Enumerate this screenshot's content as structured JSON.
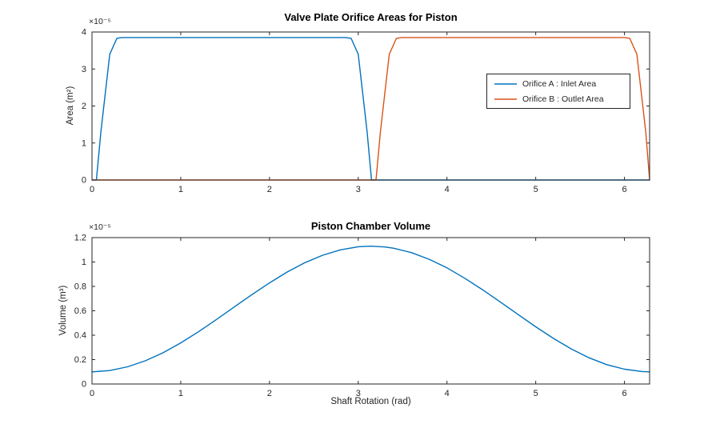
{
  "figure": {
    "background": "#ffffff",
    "axis_color": "#262626",
    "title_color": "#000000"
  },
  "chart_data": [
    {
      "type": "line",
      "title": "Valve Plate Orifice Areas for Piston",
      "xlabel": "",
      "ylabel": "Area  (m²)",
      "y_multiplier": "×10⁻⁵",
      "xlim": [
        0,
        6.2832
      ],
      "ylim": [
        0,
        4
      ],
      "xticks": [
        0,
        1,
        2,
        3,
        4,
        5,
        6
      ],
      "yticks": [
        0,
        1,
        2,
        3,
        4
      ],
      "grid": false,
      "legend_position": "middle-right",
      "series": [
        {
          "name": "Orifice A : Inlet Area",
          "color": "#0072BD",
          "points": [
            [
              0,
              0
            ],
            [
              0.05,
              0
            ],
            [
              0.1,
              1.3
            ],
            [
              0.2,
              3.4
            ],
            [
              0.28,
              3.83
            ],
            [
              0.34,
              3.85
            ],
            [
              2.86,
              3.85
            ],
            [
              2.92,
              3.83
            ],
            [
              3.0,
              3.4
            ],
            [
              3.1,
              1.3
            ],
            [
              3.15,
              0
            ],
            [
              6.2832,
              0
            ]
          ]
        },
        {
          "name": "Orifice B : Outlet Area",
          "color": "#D95319",
          "points": [
            [
              0,
              0
            ],
            [
              3.2,
              0
            ],
            [
              3.25,
              1.3
            ],
            [
              3.35,
              3.4
            ],
            [
              3.43,
              3.83
            ],
            [
              3.49,
              3.85
            ],
            [
              6.0,
              3.85
            ],
            [
              6.06,
              3.83
            ],
            [
              6.14,
              3.4
            ],
            [
              6.24,
              1.3
            ],
            [
              6.2832,
              0
            ]
          ]
        }
      ]
    },
    {
      "type": "line",
      "title": "Piston Chamber Volume",
      "xlabel": "Shaft Rotation (rad)",
      "ylabel": "Volume  (m³)",
      "y_multiplier": "×10⁻⁵",
      "xlim": [
        0,
        6.2832
      ],
      "ylim": [
        0,
        1.2
      ],
      "xticks": [
        0,
        1,
        2,
        3,
        4,
        5,
        6
      ],
      "yticks": [
        0,
        0.2,
        0.4,
        0.6,
        0.8,
        1,
        1.2
      ],
      "grid": false,
      "series": [
        {
          "color": "#0072BD",
          "points": [
            [
              0,
              0.1
            ],
            [
              0.2,
              0.11
            ],
            [
              0.4,
              0.141
            ],
            [
              0.6,
              0.19
            ],
            [
              0.8,
              0.256
            ],
            [
              1.0,
              0.337
            ],
            [
              1.2,
              0.428
            ],
            [
              1.4,
              0.527
            ],
            [
              1.6,
              0.63
            ],
            [
              1.8,
              0.732
            ],
            [
              2.0,
              0.829
            ],
            [
              2.2,
              0.918
            ],
            [
              2.4,
              0.995
            ],
            [
              2.6,
              1.056
            ],
            [
              2.8,
              1.1
            ],
            [
              3.0,
              1.125
            ],
            [
              3.14,
              1.13
            ],
            [
              3.3,
              1.123
            ],
            [
              3.4,
              1.113
            ],
            [
              3.6,
              1.077
            ],
            [
              3.8,
              1.022
            ],
            [
              4.0,
              0.952
            ],
            [
              4.2,
              0.867
            ],
            [
              4.4,
              0.773
            ],
            [
              4.6,
              0.673
            ],
            [
              4.8,
              0.57
            ],
            [
              5.0,
              0.469
            ],
            [
              5.2,
              0.374
            ],
            [
              5.4,
              0.288
            ],
            [
              5.6,
              0.215
            ],
            [
              5.8,
              0.159
            ],
            [
              6.0,
              0.121
            ],
            [
              6.2,
              0.102
            ],
            [
              6.2832,
              0.1
            ]
          ]
        }
      ]
    }
  ]
}
